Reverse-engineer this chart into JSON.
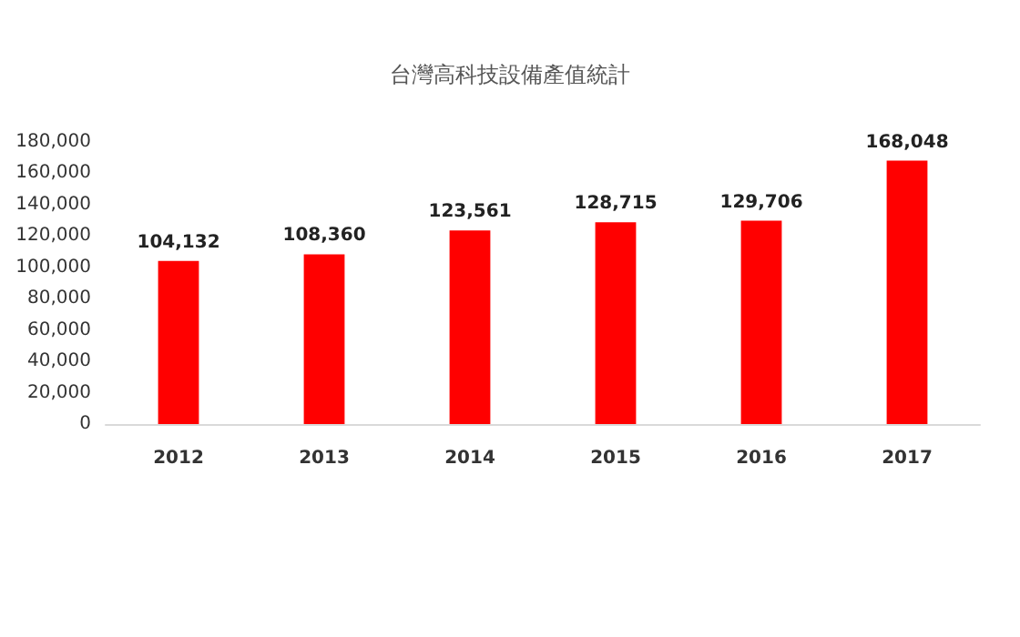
{
  "chart_data": {
    "type": "bar",
    "title": "台灣高科技設備產值統計",
    "categories": [
      "2012",
      "2013",
      "2014",
      "2015",
      "2016",
      "2017"
    ],
    "values": [
      104132,
      108360,
      123561,
      128715,
      129706,
      168048
    ],
    "value_labels": [
      "104,132",
      "108,360",
      "123,561",
      "128,715",
      "129,706",
      "168,048"
    ],
    "color": "#ff0000",
    "ylim": [
      0,
      180000
    ],
    "yticks": [
      0,
      {
        "value": 20000,
        "label": "20,000"
      },
      {
        "value": 40000,
        "label": "40,000"
      },
      {
        "value": 60000,
        "label": "60,000"
      },
      {
        "value": 80000,
        "label": "80,000"
      },
      {
        "value": 100000,
        "label": "100,000"
      },
      {
        "value": 120000,
        "label": "120,000"
      },
      {
        "value": 140000,
        "label": "140,000"
      },
      {
        "value": 160000,
        "label": "160,000"
      },
      {
        "value": 180000,
        "label": "180,000"
      }
    ]
  }
}
